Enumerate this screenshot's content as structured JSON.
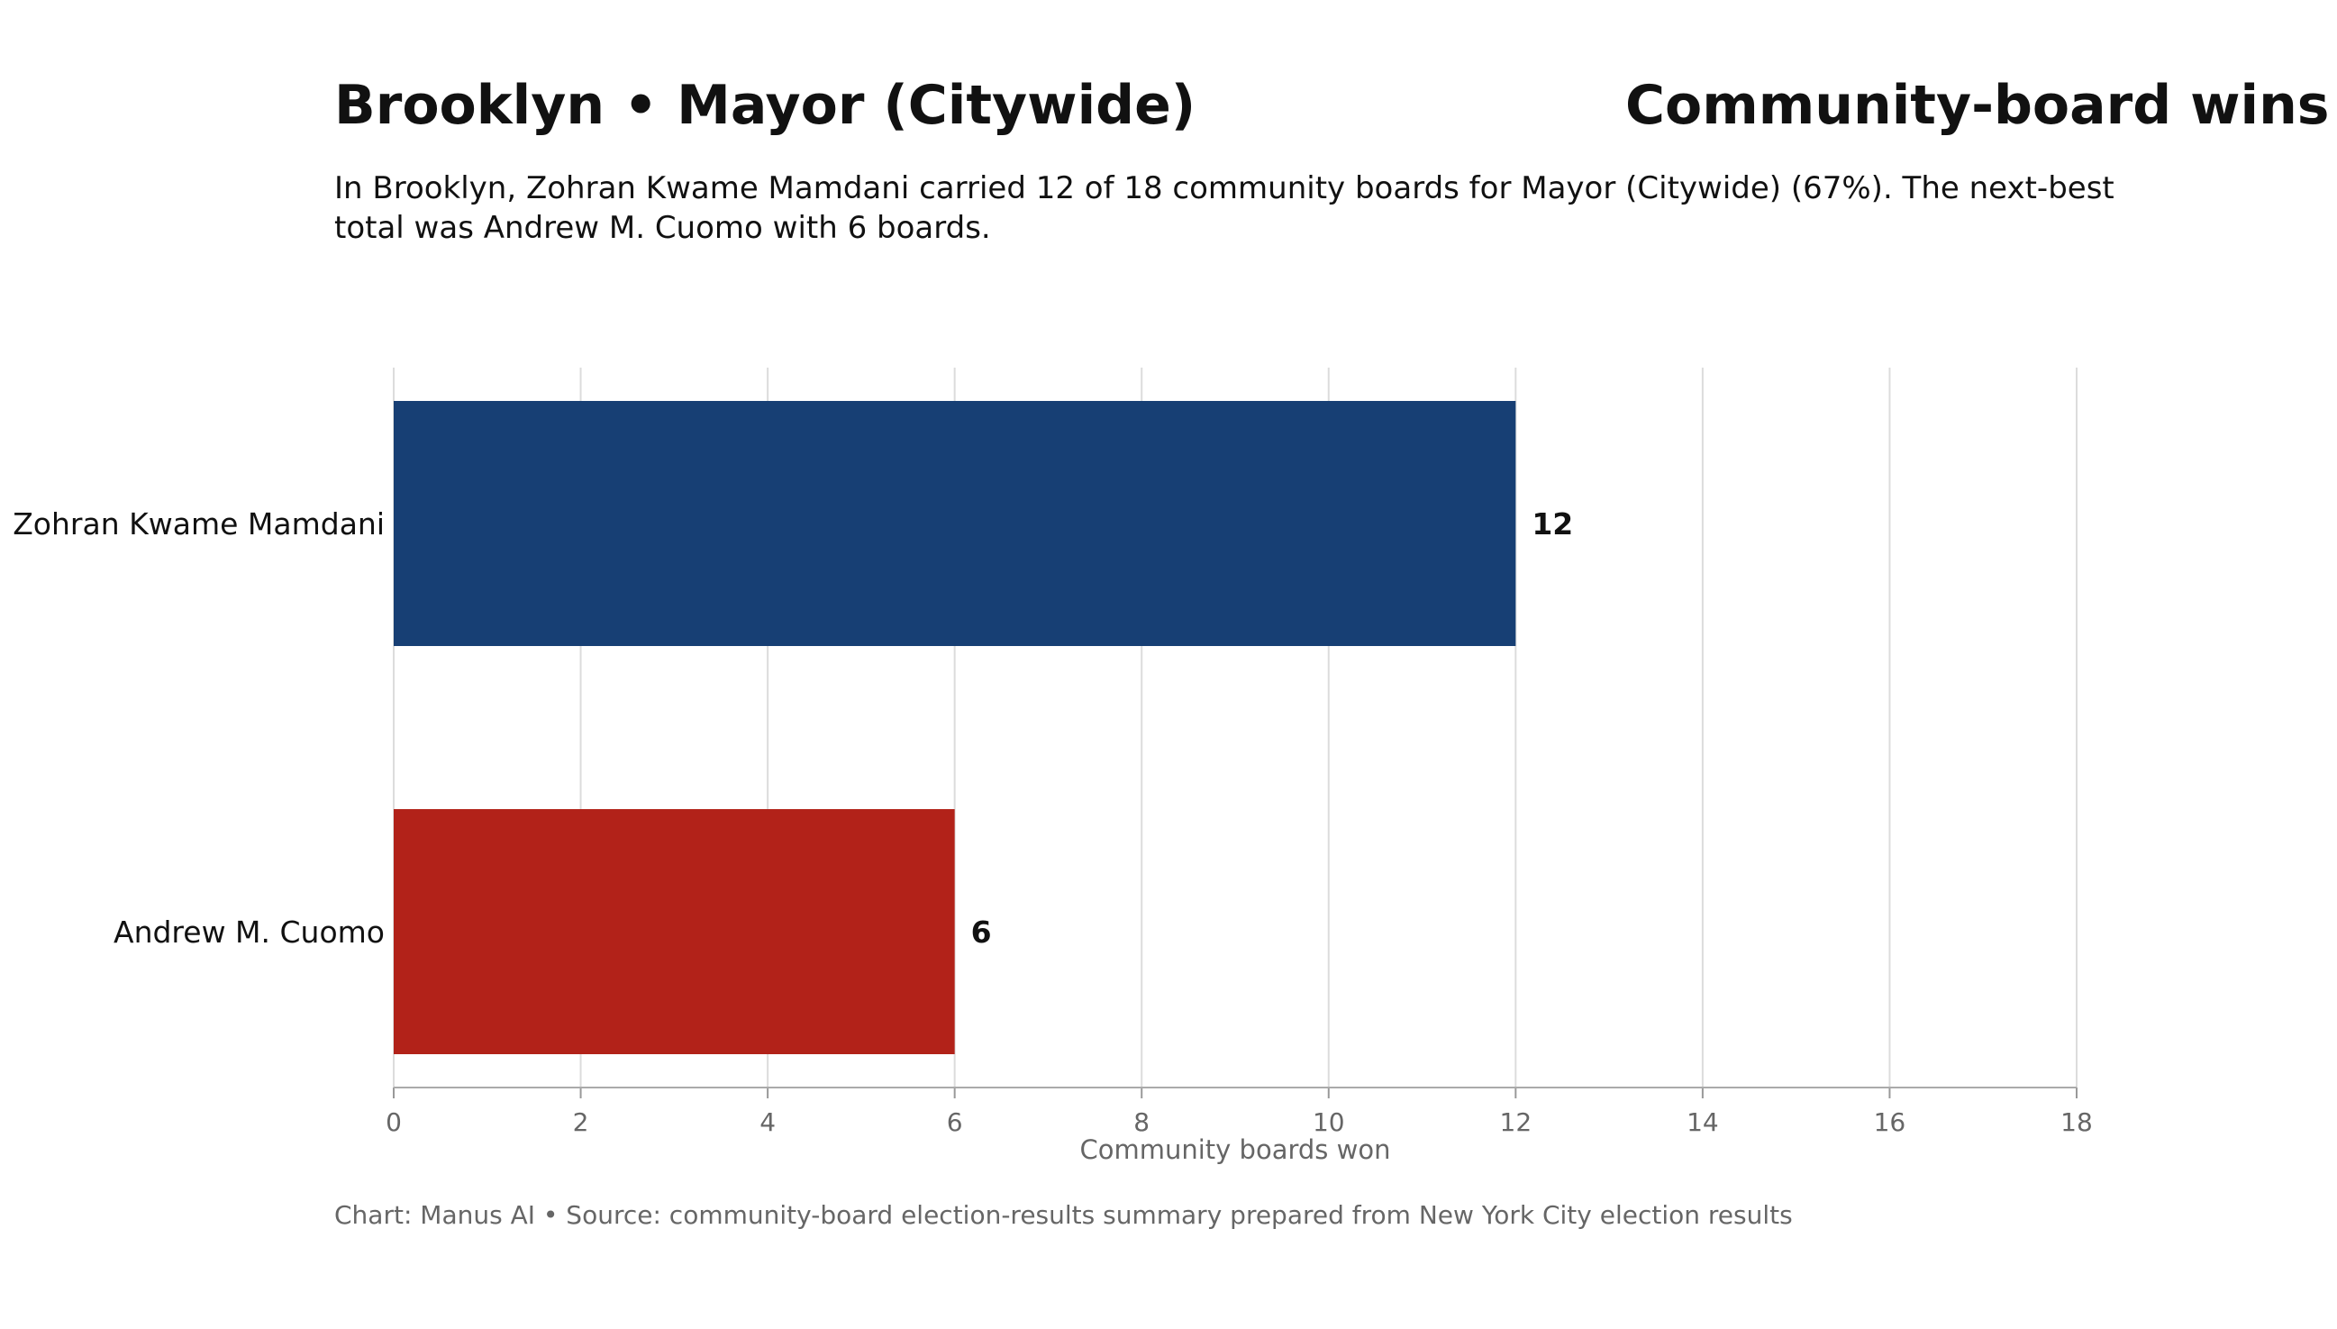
{
  "header": {
    "title": "Brooklyn • Mayor (Citywide)",
    "chart_heading": "Community-board wins",
    "subtitle": "In Brooklyn, Zohran Kwame Mamdani carried 12 of 18 community boards for Mayor (Citywide) (67%). The next-best total was Andrew M. Cuomo with 6 boards."
  },
  "footer": {
    "credit": "Chart: Manus AI • Source: community-board election-results summary prepared from New York City election results"
  },
  "chart_data": {
    "type": "bar",
    "orientation": "horizontal",
    "title": "Brooklyn • Mayor (Citywide)",
    "categories": [
      "Zohran Kwame Mamdani",
      "Andrew M. Cuomo"
    ],
    "values": [
      12,
      6
    ],
    "colors": [
      "#173f74",
      "#b22219"
    ],
    "xlabel": "Community boards won",
    "ylabel": "",
    "xlim": [
      0,
      18
    ],
    "xticks": [
      0,
      2,
      4,
      6,
      8,
      10,
      12,
      14,
      16,
      18
    ],
    "xtick_labels": [
      "0",
      "2",
      "4",
      "6",
      "8",
      "10",
      "12",
      "14",
      "16",
      "18"
    ],
    "data_labels": [
      "12",
      "6"
    ],
    "grid": "vertical",
    "legend": "none"
  }
}
